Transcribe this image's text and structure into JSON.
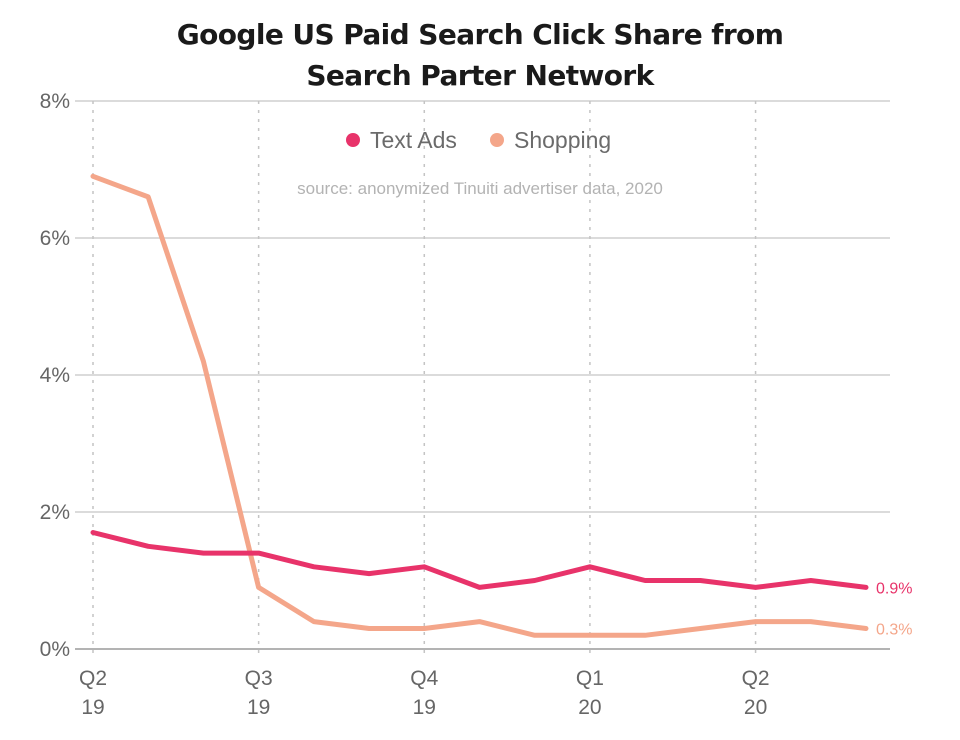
{
  "title_line1": "Google US Paid Search Click Share from",
  "title_line2": "Search Parter Network",
  "source_note": "source: anonymized Tinuiti advertiser data, 2020",
  "chart_data": {
    "type": "line",
    "title": "Google US Paid Search Click Share from Search Parter Network",
    "ylim": [
      0,
      8
    ],
    "y_ticks": [
      {
        "value": 0,
        "label": "0%"
      },
      {
        "value": 2,
        "label": "2%"
      },
      {
        "value": 4,
        "label": "4%"
      },
      {
        "value": 6,
        "label": "6%"
      },
      {
        "value": 8,
        "label": "8%"
      }
    ],
    "x_ticks": [
      {
        "index": 0,
        "line1": "Q2",
        "line2": "19"
      },
      {
        "index": 3,
        "line1": "Q3",
        "line2": "19"
      },
      {
        "index": 6,
        "line1": "Q4",
        "line2": "19"
      },
      {
        "index": 9,
        "line1": "Q1",
        "line2": "20"
      },
      {
        "index": 12,
        "line1": "Q2",
        "line2": "20"
      }
    ],
    "x_count": 15,
    "grid": true,
    "legend_position": "top-center",
    "series": [
      {
        "name": "Text Ads",
        "color": "#e8336a",
        "values": [
          1.7,
          1.5,
          1.4,
          1.4,
          1.2,
          1.1,
          1.2,
          0.9,
          1.0,
          1.2,
          1.0,
          1.0,
          0.9,
          1.0,
          0.9
        ],
        "end_label": "0.9%"
      },
      {
        "name": "Shopping",
        "color": "#f4a68a",
        "values": [
          6.9,
          6.6,
          4.2,
          0.9,
          0.4,
          0.3,
          0.3,
          0.4,
          0.2,
          0.2,
          0.2,
          0.3,
          0.4,
          0.4,
          0.3
        ],
        "end_label": "0.3%"
      }
    ]
  }
}
